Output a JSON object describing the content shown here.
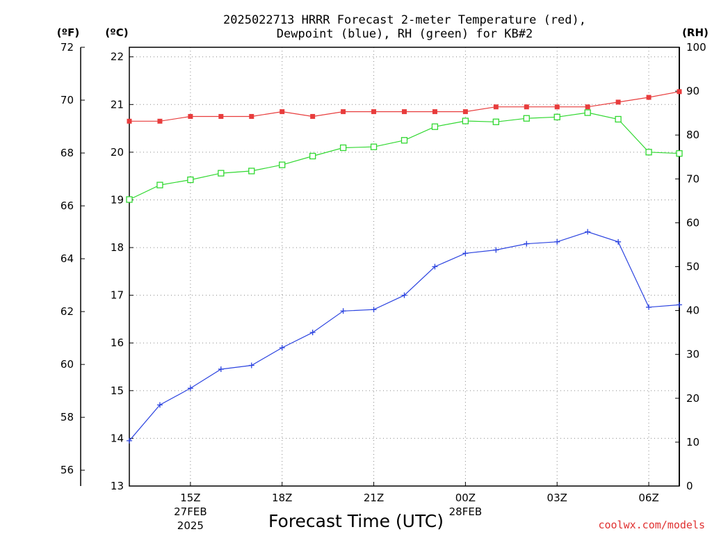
{
  "chart_data": {
    "type": "line",
    "title_line1": "2025022713 HRRR Forecast 2-meter Temperature (red),",
    "title_line2": "Dewpoint (blue), RH (green) for KB#2",
    "xlabel": "Forecast Time (UTC)",
    "credit": "coolwx.com/models",
    "units": {
      "fahrenheit": "(ºF)",
      "celsius": "(ºC)",
      "rh": "(RH)"
    },
    "x_hours": [
      13,
      14,
      15,
      16,
      17,
      18,
      19,
      20,
      21,
      22,
      23,
      24,
      25,
      26,
      27,
      28,
      29,
      30,
      31
    ],
    "xlim_hours": [
      13,
      31
    ],
    "x_ticks": [
      {
        "hour": 15,
        "label": "15Z",
        "sub1": "27FEB",
        "sub2": "2025"
      },
      {
        "hour": 18,
        "label": "18Z",
        "sub1": "",
        "sub2": ""
      },
      {
        "hour": 21,
        "label": "21Z",
        "sub1": "",
        "sub2": ""
      },
      {
        "hour": 24,
        "label": "00Z",
        "sub1": "28FEB",
        "sub2": ""
      },
      {
        "hour": 27,
        "label": "03Z",
        "sub1": "",
        "sub2": ""
      },
      {
        "hour": 30,
        "label": "06Z",
        "sub1": "",
        "sub2": ""
      }
    ],
    "celsius_axis": {
      "ylim": [
        13,
        22.2
      ],
      "ticks": [
        "13",
        "14",
        "15",
        "16",
        "17",
        "18",
        "19",
        "20",
        "21",
        "22"
      ]
    },
    "fahrenheit_axis": {
      "ylim": [
        55.4,
        72
      ],
      "ticks": [
        "56",
        "58",
        "60",
        "62",
        "64",
        "66",
        "68",
        "70",
        "72"
      ]
    },
    "rh_axis": {
      "ylim": [
        0,
        100
      ],
      "ticks": [
        "0",
        "10",
        "20",
        "30",
        "40",
        "50",
        "60",
        "70",
        "80",
        "90",
        "100"
      ]
    },
    "grid": true,
    "series": [
      {
        "key": "temperature",
        "axis": "celsius",
        "color": "#e83c3c",
        "marker": "filled-square",
        "values": [
          20.65,
          20.65,
          20.75,
          20.75,
          20.75,
          20.85,
          20.75,
          20.85,
          20.85,
          20.85,
          20.85,
          20.85,
          20.95,
          20.95,
          20.95,
          20.95,
          21.05,
          21.15,
          21.27
        ]
      },
      {
        "key": "dewpoint",
        "axis": "celsius",
        "color": "#2c44e0",
        "marker": "plus",
        "values": [
          13.95,
          14.7,
          15.05,
          15.45,
          15.53,
          15.9,
          16.22,
          16.67,
          16.7,
          17.0,
          17.6,
          17.88,
          17.95,
          18.08,
          18.12,
          18.33,
          18.12,
          16.75,
          16.8
        ]
      },
      {
        "key": "rh",
        "axis": "rh",
        "color": "#30d830",
        "marker": "open-square",
        "values": [
          65.3,
          68.6,
          69.8,
          71.3,
          71.8,
          73.2,
          75.2,
          77.1,
          77.3,
          78.8,
          81.9,
          83.2,
          83.0,
          83.8,
          84.1,
          85.1,
          83.6,
          76.1,
          75.8
        ]
      }
    ]
  }
}
